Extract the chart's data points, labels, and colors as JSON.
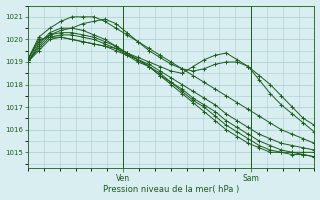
{
  "xlabel": "Pression niveau de la mer( hPa )",
  "ylim": [
    1014.3,
    1021.5
  ],
  "xlim": [
    0,
    54
  ],
  "yticks": [
    1015,
    1016,
    1017,
    1018,
    1019,
    1020,
    1021
  ],
  "ven_x": 18,
  "sam_x": 42,
  "bg_color": "#d8eef0",
  "grid_color": "#aaccd0",
  "line_color": "#1a5c1a",
  "series": [
    [
      1019.0,
      1019.5,
      1020.0,
      1020.1,
      1020.0,
      1019.9,
      1019.8,
      1019.7,
      1019.5,
      1019.3,
      1019.1,
      1018.9,
      1018.6,
      1018.3,
      1018.0,
      1017.7,
      1017.4,
      1017.1,
      1016.7,
      1016.4,
      1016.1,
      1015.8,
      1015.6,
      1015.4,
      1015.3,
      1015.2,
      1015.1
    ],
    [
      1019.0,
      1019.6,
      1020.1,
      1020.2,
      1020.2,
      1020.1,
      1020.0,
      1019.8,
      1019.6,
      1019.3,
      1019.0,
      1018.8,
      1018.5,
      1018.1,
      1017.8,
      1017.4,
      1017.1,
      1016.8,
      1016.4,
      1016.1,
      1015.8,
      1015.5,
      1015.3,
      1015.1,
      1015.0,
      1014.9,
      1014.8
    ],
    [
      1019.0,
      1019.7,
      1020.2,
      1020.3,
      1020.3,
      1020.2,
      1020.1,
      1019.9,
      1019.7,
      1019.4,
      1019.1,
      1018.8,
      1018.4,
      1018.1,
      1017.7,
      1017.3,
      1017.0,
      1016.6,
      1016.2,
      1015.9,
      1015.6,
      1015.3,
      1015.1,
      1015.0,
      1014.9,
      1014.9,
      1014.8
    ],
    [
      1019.0,
      1019.8,
      1020.3,
      1020.5,
      1020.5,
      1020.4,
      1020.2,
      1020.0,
      1019.7,
      1019.4,
      1019.1,
      1018.8,
      1018.4,
      1018.0,
      1017.6,
      1017.2,
      1016.8,
      1016.4,
      1016.0,
      1015.7,
      1015.4,
      1015.2,
      1015.0,
      1015.0,
      1015.0,
      1015.0,
      1015.0
    ],
    [
      1019.1,
      1020.1,
      1020.5,
      1020.8,
      1021.0,
      1021.0,
      1021.0,
      1020.8,
      1020.5,
      1020.2,
      1019.9,
      1019.6,
      1019.3,
      1019.0,
      1018.7,
      1018.4,
      1018.1,
      1017.8,
      1017.5,
      1017.2,
      1016.9,
      1016.6,
      1016.3,
      1016.0,
      1015.8,
      1015.6,
      1015.4
    ],
    [
      1019.1,
      1020.0,
      1020.1,
      1020.1,
      1020.0,
      1019.9,
      1019.8,
      1019.7,
      1019.6,
      1019.4,
      1019.2,
      1019.0,
      1018.8,
      1018.6,
      1018.5,
      1018.8,
      1019.1,
      1019.3,
      1019.4,
      1019.1,
      1018.8,
      1018.2,
      1017.6,
      1017.1,
      1016.7,
      1016.3,
      1015.9
    ],
    [
      1019.1,
      1019.9,
      1020.2,
      1020.4,
      1020.5,
      1020.7,
      1020.8,
      1020.9,
      1020.7,
      1020.3,
      1019.9,
      1019.5,
      1019.2,
      1018.9,
      1018.7,
      1018.6,
      1018.7,
      1018.9,
      1019.0,
      1019.0,
      1018.8,
      1018.4,
      1018.0,
      1017.5,
      1017.0,
      1016.5,
      1016.2
    ]
  ],
  "n_points": 27
}
